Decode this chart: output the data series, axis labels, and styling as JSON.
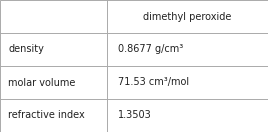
{
  "header_val": "dimethyl peroxide",
  "rows": [
    {
      "label": "density",
      "value": "0.8677 g/cm³"
    },
    {
      "label": "molar volume",
      "value": "71.53 cm³/mol"
    },
    {
      "label": "refractive index",
      "value": "1.3503"
    }
  ],
  "bg_color": "#ffffff",
  "border_color": "#aaaaaa",
  "text_color": "#222222",
  "cell_fontsize": 7.0,
  "col_split": 0.4
}
